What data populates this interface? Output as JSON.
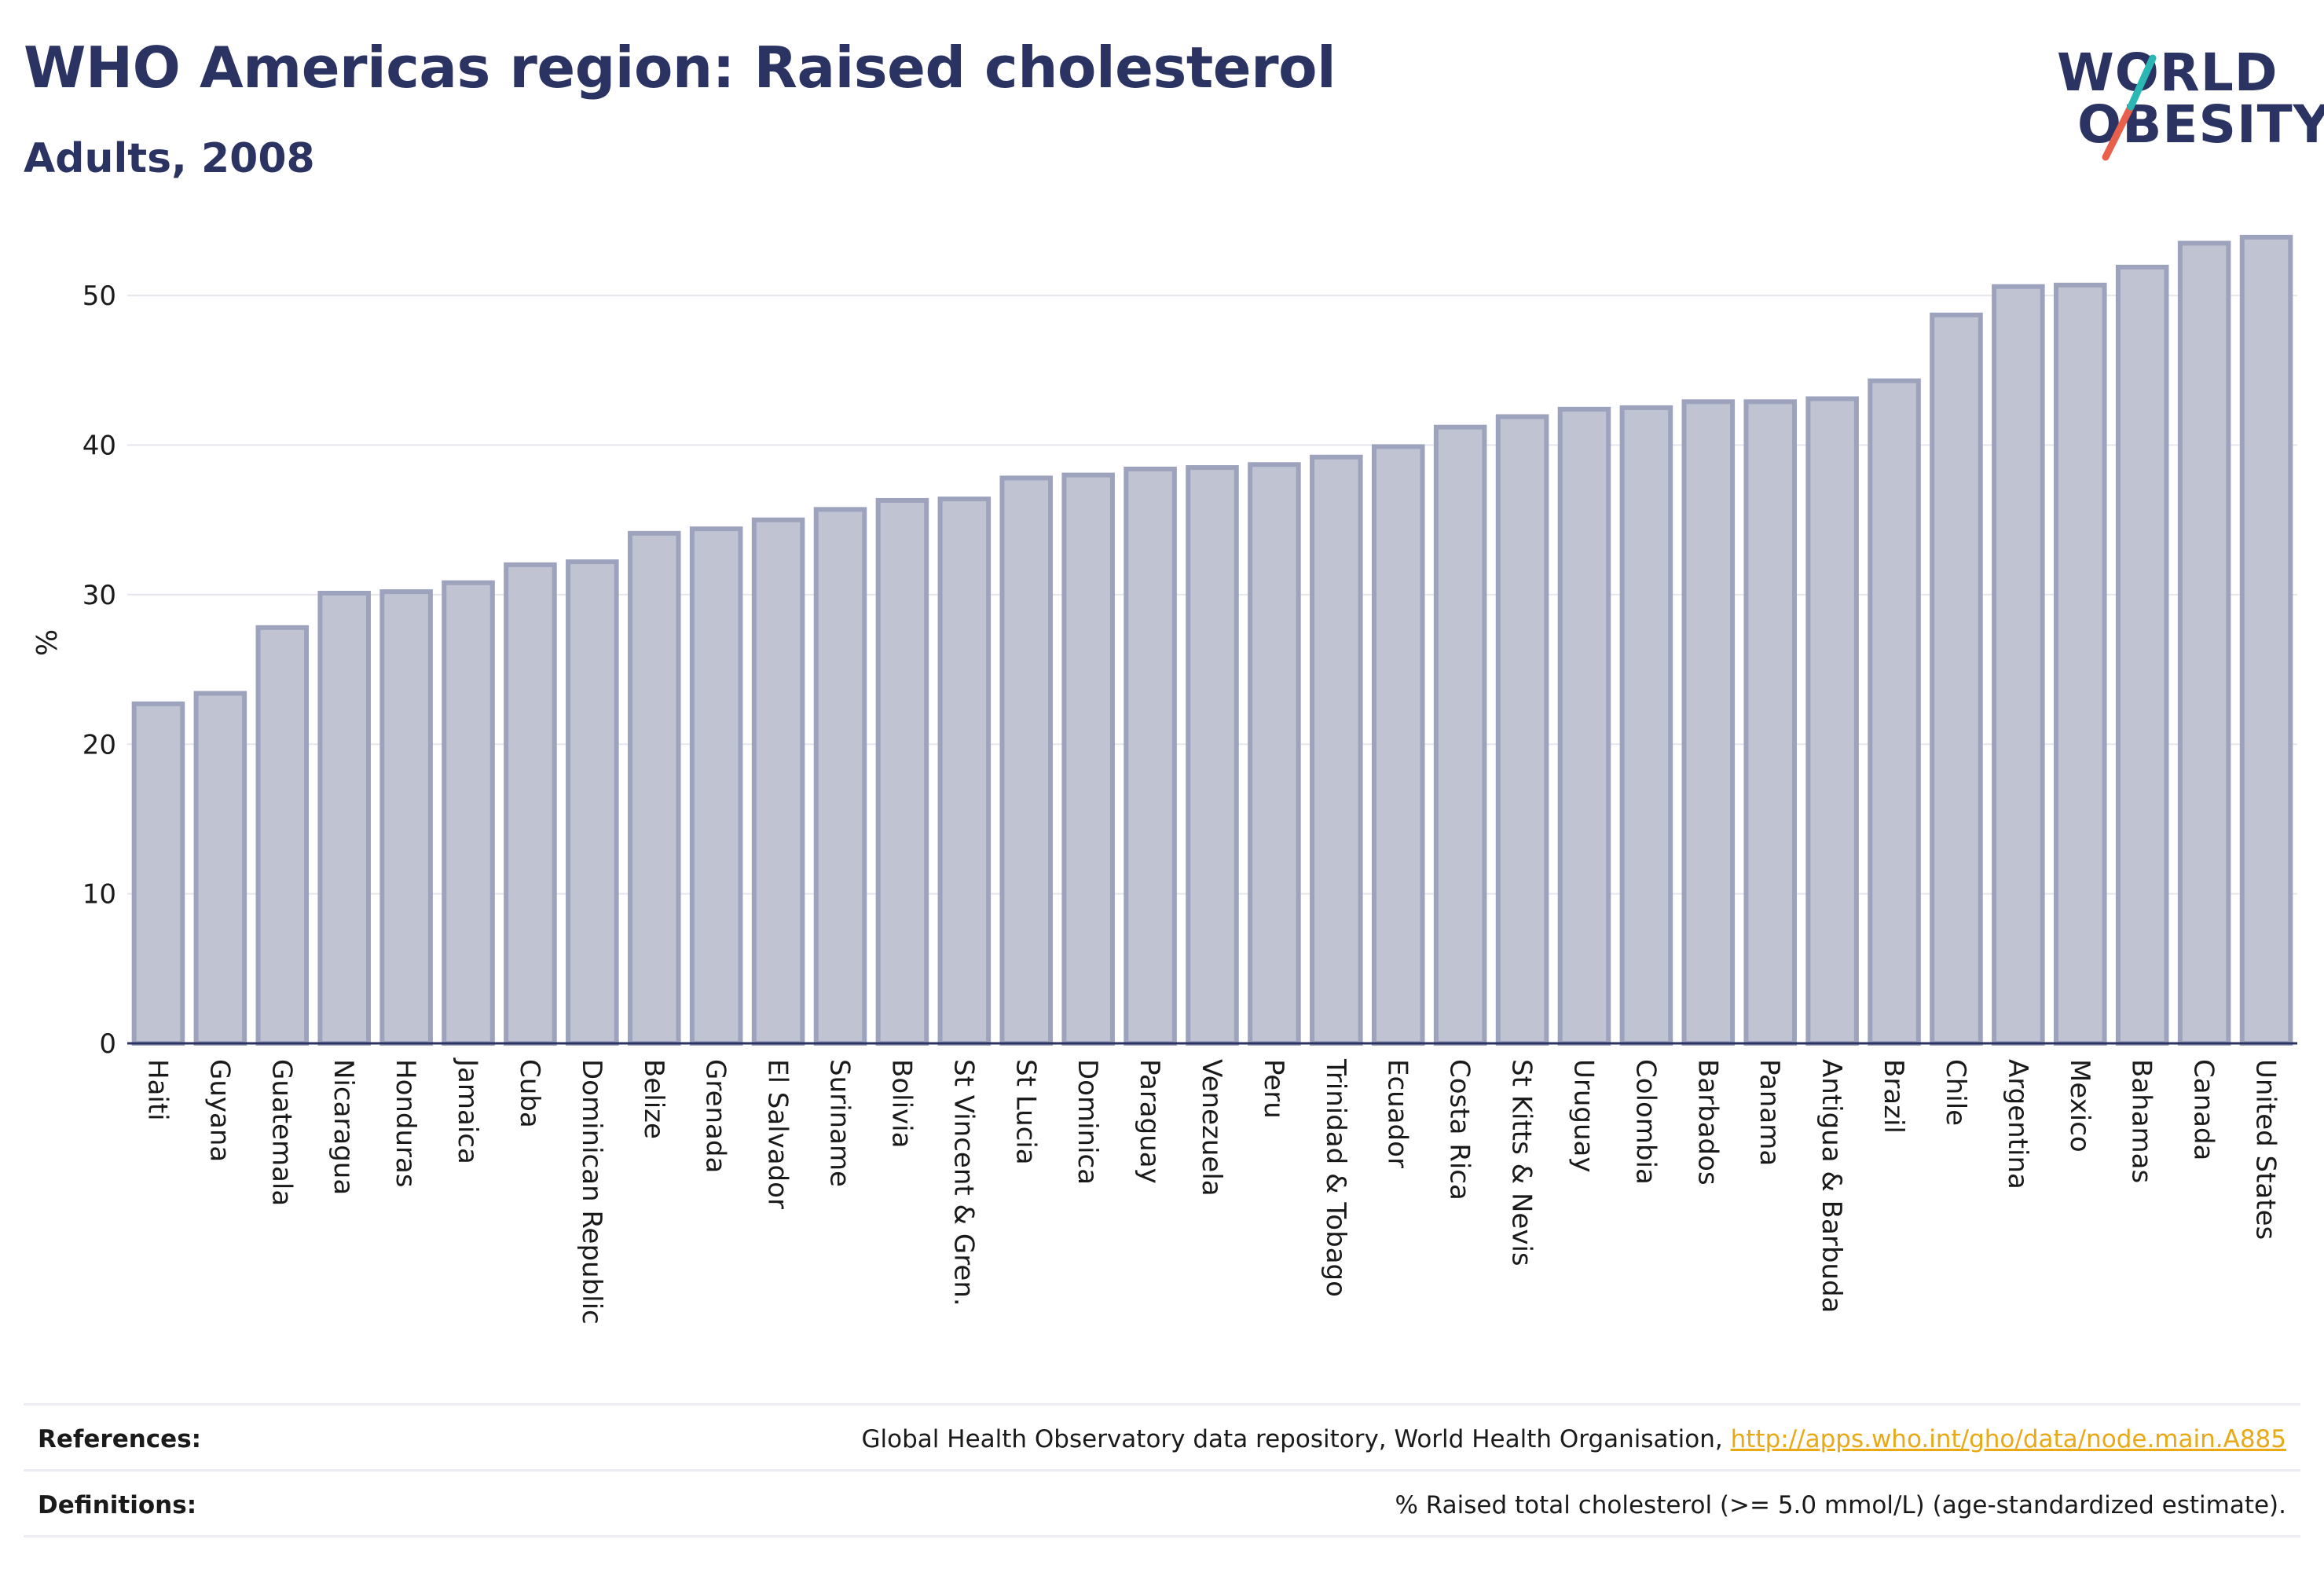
{
  "header": {
    "title": "WHO Americas region: Raised cholesterol",
    "subtitle": "Adults, 2008"
  },
  "logo": {
    "line1": "WORLD",
    "line2": "OBESITY",
    "slash_color_top": "#2bb7b3",
    "slash_color_bottom": "#e8604c"
  },
  "colors": {
    "bar_fill": "#c0c3d1",
    "bar_stroke": "#9da3bd",
    "title": "#2a3361",
    "link": "#e8a915"
  },
  "chart_data": {
    "type": "bar",
    "title": "",
    "xlabel": "",
    "ylabel": "%",
    "ylim": [
      0,
      54
    ],
    "yticks": [
      0,
      10,
      20,
      30,
      40,
      50
    ],
    "grid": true,
    "categories": [
      "Haiti",
      "Guyana",
      "Guatemala",
      "Nicaragua",
      "Honduras",
      "Jamaica",
      "Cuba",
      "Dominican Republic",
      "Belize",
      "Grenada",
      "El Salvador",
      "Suriname",
      "Bolivia",
      "St Vincent & Gren.",
      "St Lucia",
      "Dominica",
      "Paraguay",
      "Venezuela",
      "Peru",
      "Trinidad & Tobago",
      "Ecuador",
      "Costa Rica",
      "St Kitts & Nevis",
      "Uruguay",
      "Colombia",
      "Barbados",
      "Panama",
      "Antigua & Barbuda",
      "Brazil",
      "Chile",
      "Argentina",
      "Mexico",
      "Bahamas",
      "Canada",
      "United States"
    ],
    "values": [
      22.7,
      23.4,
      27.8,
      30.1,
      30.2,
      30.8,
      32.0,
      32.2,
      34.1,
      34.4,
      35.0,
      35.7,
      36.3,
      36.4,
      37.8,
      38.0,
      38.4,
      38.5,
      38.7,
      39.2,
      39.9,
      41.2,
      41.9,
      42.4,
      42.5,
      42.9,
      42.9,
      43.1,
      44.3,
      48.7,
      50.6,
      50.7,
      51.9,
      53.5,
      53.9
    ]
  },
  "footer": {
    "references_label": "References:",
    "references_text": "Global Health Observatory data repository, World Health Organisation, ",
    "references_link": "http://apps.who.int/gho/data/node.main.A885",
    "definitions_label": "Definitions:",
    "definitions_text": "% Raised total cholesterol (>= 5.0 mmol/L) (age-standardized estimate)."
  }
}
